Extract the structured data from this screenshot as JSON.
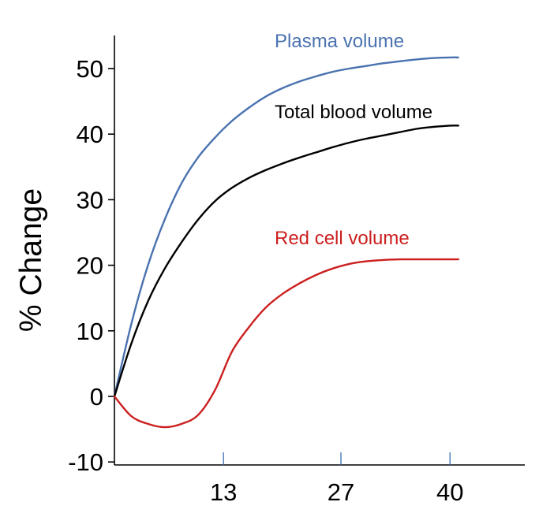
{
  "chart_data": {
    "type": "line",
    "title": "",
    "xlabel": "",
    "ylabel": "% Change",
    "xlim": [
      0,
      48
    ],
    "ylim": [
      -10,
      60
    ],
    "x_ticks": [
      13,
      27,
      40
    ],
    "y_ticks": [
      50,
      40,
      30,
      20,
      10,
      0,
      -10
    ],
    "grid": false,
    "series": [
      {
        "name": "Plasma volume",
        "color": "#4a72b0",
        "x": [
          0,
          2,
          4,
          6,
          8,
          10,
          12,
          14,
          16,
          18,
          20,
          22,
          24,
          26,
          28,
          30,
          32,
          34,
          36,
          38,
          40,
          41
        ],
        "y": [
          0,
          11,
          20,
          27,
          32.5,
          36.5,
          39.5,
          42,
          44,
          45.7,
          47,
          48,
          48.8,
          49.5,
          50,
          50.4,
          50.8,
          51.1,
          51.4,
          51.6,
          51.7,
          51.7
        ]
      },
      {
        "name": "Total blood volume",
        "color": "#000000",
        "x": [
          0,
          2,
          4,
          6,
          8,
          10,
          12,
          14,
          16,
          18,
          20,
          22,
          24,
          26,
          28,
          30,
          32,
          34,
          36,
          38,
          40,
          41
        ],
        "y": [
          0,
          8,
          14.5,
          19.5,
          23.5,
          27,
          29.8,
          31.8,
          33.3,
          34.5,
          35.5,
          36.4,
          37.2,
          38,
          38.7,
          39.3,
          39.8,
          40.3,
          40.8,
          41.1,
          41.3,
          41.3
        ]
      },
      {
        "name": "Red cell volume",
        "color": "#cc1f1f",
        "x": [
          0,
          2,
          4,
          6,
          8,
          10,
          12,
          14,
          16,
          18,
          20,
          22,
          24,
          26,
          28,
          30,
          32,
          34,
          36,
          38,
          40,
          41
        ],
        "y": [
          0,
          -3,
          -4.2,
          -4.7,
          -4.2,
          -2.8,
          1,
          6.8,
          10.5,
          13.5,
          15.6,
          17.2,
          18.5,
          19.5,
          20.2,
          20.6,
          20.8,
          20.9,
          20.9,
          20.9,
          20.9,
          20.9
        ]
      }
    ]
  }
}
